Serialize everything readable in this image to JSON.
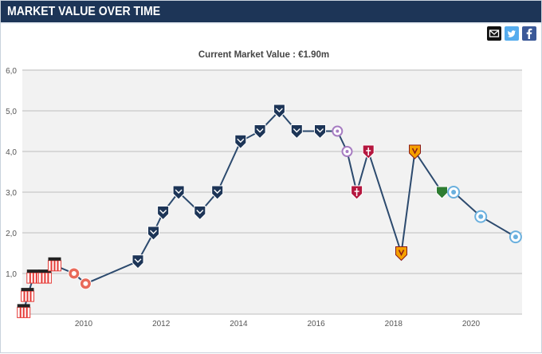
{
  "header": {
    "title": "MARKET VALUE OVER TIME"
  },
  "share": {
    "items": [
      {
        "name": "email",
        "icon": "envelope-icon",
        "color": "#111111"
      },
      {
        "name": "twitter",
        "icon": "twitter-bird-icon",
        "color": "#55acee"
      },
      {
        "name": "facebook",
        "icon": "facebook-f-icon",
        "color": "#3b5998"
      }
    ]
  },
  "chart_data": {
    "type": "line",
    "title": "Current Market Value : €1.90m",
    "xlabel": "",
    "ylabel": "",
    "xlim": [
      2008.25,
      2021.3
    ],
    "ylim": [
      0,
      6
    ],
    "y_ticks": [
      "6,0",
      "5,0",
      "4,0",
      "3,0",
      "2,0",
      "1,0"
    ],
    "x_ticks": [
      "2010",
      "2012",
      "2014",
      "2016",
      "2018",
      "2020"
    ],
    "grid": true,
    "line_color": "#2c4a6e",
    "club_colors": {
      "red_white_stripes": "#e53935",
      "red_rooster": "#e96a5a",
      "bordeaux": "#1d3557",
      "lilac": "#a77dc2",
      "metz": "#b5173f",
      "benevento": "#f5a000",
      "green": "#2e7d32",
      "light_blue": "#6ab0de"
    },
    "series": [
      {
        "x": [
          2008.45,
          2008.55,
          2008.7,
          2009.0,
          2009.25,
          2009.75,
          2010.05,
          2011.4,
          2011.8,
          2012.05,
          2012.45,
          2013.0,
          2013.45,
          2014.05,
          2014.55,
          2015.05,
          2015.5,
          2016.1,
          2016.55,
          2016.8,
          2017.05,
          2017.35,
          2018.2,
          2018.55,
          2019.25,
          2019.55,
          2020.25,
          2021.15
        ],
        "y": [
          0.05,
          0.45,
          0.9,
          0.9,
          1.2,
          1.0,
          0.75,
          1.3,
          2.0,
          2.5,
          3.0,
          2.5,
          3.0,
          4.25,
          4.5,
          5.0,
          4.5,
          4.5,
          4.5,
          4.0,
          3.0,
          4.0,
          1.5,
          4.0,
          3.0,
          3.0,
          2.4,
          1.9
        ],
        "clubs": [
          "red_white_stripes",
          "red_white_stripes",
          "red_white_stripes",
          "red_white_stripes",
          "red_white_stripes",
          "red_rooster",
          "red_rooster",
          "bordeaux",
          "bordeaux",
          "bordeaux",
          "bordeaux",
          "bordeaux",
          "bordeaux",
          "bordeaux",
          "bordeaux",
          "bordeaux",
          "bordeaux",
          "bordeaux",
          "lilac",
          "lilac",
          "metz",
          "metz",
          "benevento",
          "benevento",
          "green",
          "light_blue",
          "light_blue",
          "light_blue"
        ]
      }
    ]
  }
}
